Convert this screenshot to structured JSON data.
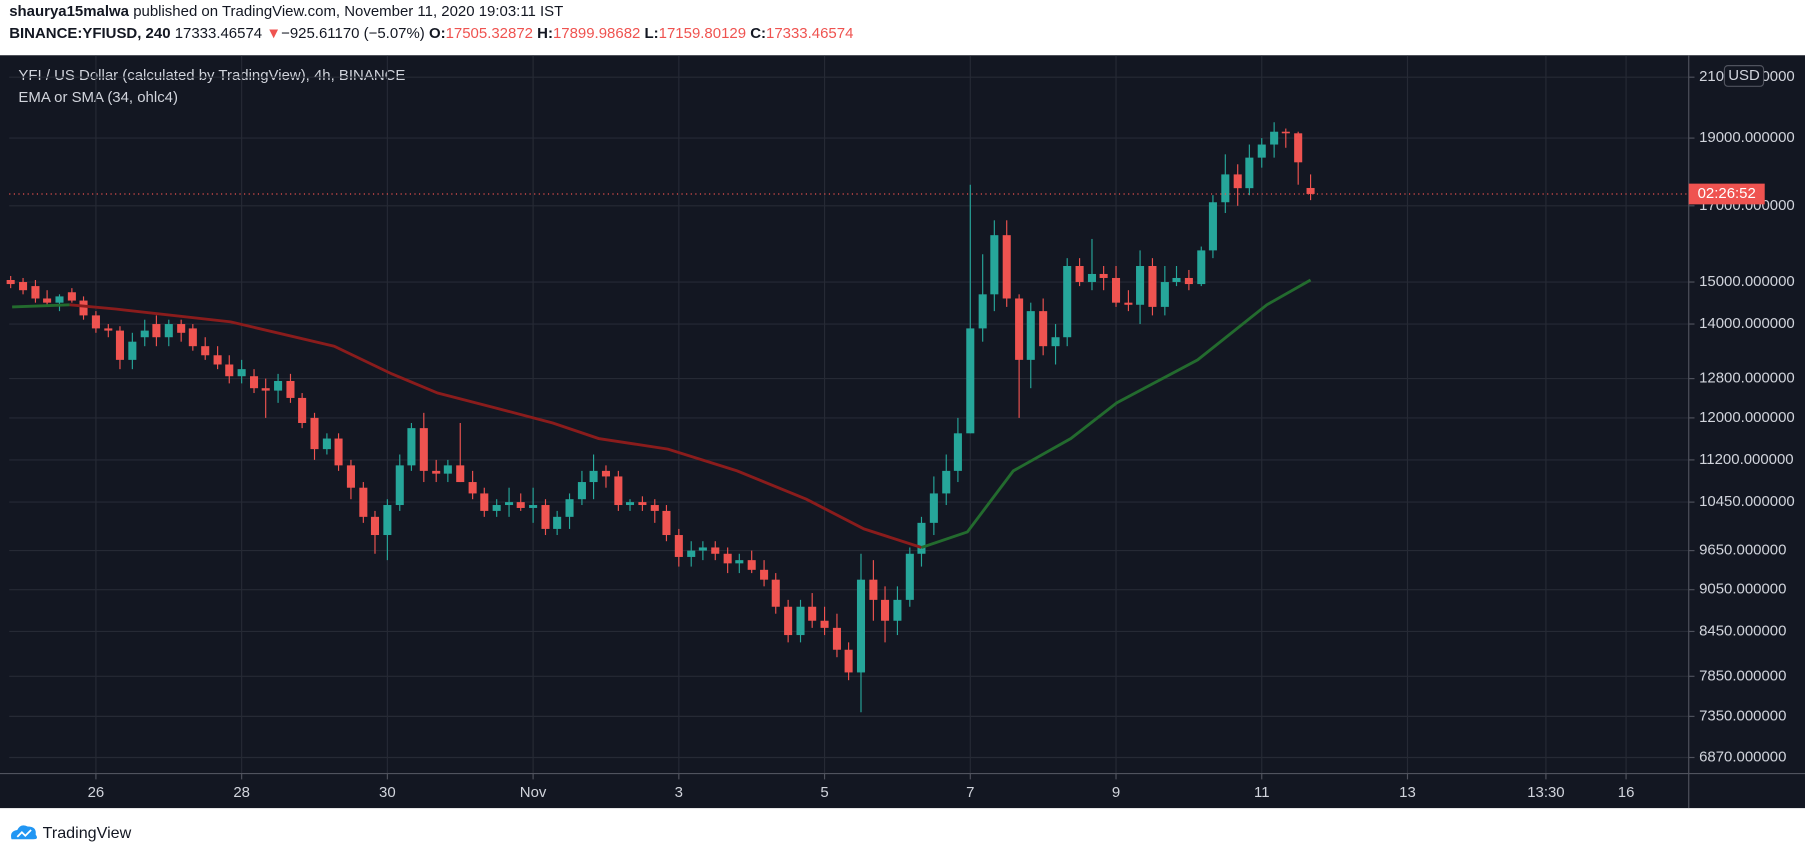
{
  "header": {
    "author": "shaurya15malwa",
    "published": "published on TradingView.com, November 11, 2020 19:03:11 IST",
    "symbol": "BINANCE:YFIUSD, 240",
    "last": "17333.46574",
    "arrow": "▼",
    "change": "−925.61170 (−5.07%)",
    "ohlc": [
      {
        "k": "O:",
        "v": "17505.32872"
      },
      {
        "k": "H:",
        "v": "17899.98682"
      },
      {
        "k": "L:",
        "v": "17159.80129"
      },
      {
        "k": "C:",
        "v": "17333.46574"
      }
    ]
  },
  "footer": {
    "brand": "TradingView"
  },
  "chart_data": {
    "type": "candlestick",
    "title": "YFI / US Dollar (calculated by TradingView), 4h, BINANCE",
    "indicator": "EMA or SMA (34, ohlc4)",
    "currency": "USD",
    "countdown": "02:26:52",
    "log_scale": true,
    "grid": true,
    "up_color": "#26a69a",
    "down_color": "#ef5350",
    "ylim": [
      6691,
      21769
    ],
    "yticks": [
      {
        "value": 21000,
        "label": "21000.000000"
      },
      {
        "value": 19000,
        "label": "19000.000000"
      },
      {
        "value": 17000,
        "label": "17000.000000"
      },
      {
        "value": 15000,
        "label": "15000.000000"
      },
      {
        "value": 14000,
        "label": "14000.000000"
      },
      {
        "value": 12800,
        "label": "12800.000000"
      },
      {
        "value": 12000,
        "label": "12000.000000"
      },
      {
        "value": 11200,
        "label": "11200.000000"
      },
      {
        "value": 10450,
        "label": "10450.000000"
      },
      {
        "value": 9650,
        "label": "9650.000000"
      },
      {
        "value": 9050,
        "label": "9050.000000"
      },
      {
        "value": 8450,
        "label": "8450.000000"
      },
      {
        "value": 7850,
        "label": "7850.000000"
      },
      {
        "value": 7350,
        "label": "7350.000000"
      },
      {
        "value": 6870,
        "label": "6870.000000"
      }
    ],
    "xlim": [
      -1.19,
      21.86
    ],
    "xticks": [
      {
        "value": 0,
        "label": "26"
      },
      {
        "value": 2,
        "label": "28"
      },
      {
        "value": 4,
        "label": "30"
      },
      {
        "value": 6,
        "label": "Nov"
      },
      {
        "value": 8,
        "label": "3"
      },
      {
        "value": 10,
        "label": "5"
      },
      {
        "value": 12,
        "label": "7"
      },
      {
        "value": 14,
        "label": "9"
      },
      {
        "value": 16,
        "label": "11"
      },
      {
        "value": 18,
        "label": "13"
      },
      {
        "value": 19.9,
        "label": "13:30"
      },
      {
        "value": 21,
        "label": "16"
      }
    ],
    "x": [
      -1.17,
      -1,
      -0.83,
      -0.67,
      -0.5,
      -0.33,
      -0.17,
      0,
      0.17,
      0.33,
      0.5,
      0.67,
      0.83,
      1,
      1.17,
      1.33,
      1.5,
      1.67,
      1.83,
      2,
      2.17,
      2.33,
      2.5,
      2.67,
      2.83,
      3,
      3.17,
      3.33,
      3.5,
      3.67,
      3.83,
      4,
      4.17,
      4.33,
      4.5,
      4.67,
      4.83,
      5,
      5.17,
      5.33,
      5.5,
      5.67,
      5.83,
      6,
      6.17,
      6.33,
      6.5,
      6.67,
      6.83,
      7,
      7.17,
      7.33,
      7.5,
      7.67,
      7.83,
      8,
      8.17,
      8.33,
      8.5,
      8.67,
      8.83,
      9,
      9.17,
      9.33,
      9.5,
      9.67,
      9.83,
      10,
      10.17,
      10.33,
      10.5,
      10.67,
      10.83,
      11,
      11.17,
      11.33,
      11.5,
      11.67,
      11.83,
      12,
      12.17,
      12.33,
      12.5,
      12.67,
      12.83,
      13,
      13.17,
      13.33,
      13.5,
      13.67,
      13.83,
      14,
      14.17,
      14.33,
      14.5,
      14.67,
      14.83,
      15,
      15.17,
      15.33,
      15.5,
      15.67,
      15.83,
      16,
      16.17,
      16.33,
      16.5,
      16.67
    ],
    "open": [
      15050,
      15000,
      14900,
      14600,
      14500,
      14750,
      14550,
      14200,
      13900,
      13850,
      13200,
      13700,
      14000,
      13700,
      14000,
      13900,
      13500,
      13300,
      13100,
      12850,
      12850,
      12600,
      12550,
      12750,
      12400,
      12000,
      11400,
      11600,
      11100,
      10700,
      10200,
      9900,
      10400,
      11100,
      11800,
      11000,
      10950,
      11100,
      10800,
      10600,
      10300,
      10400,
      10450,
      10350,
      10400,
      10000,
      10200,
      10500,
      10800,
      11000,
      10900,
      10400,
      10450,
      10400,
      10300,
      9900,
      9550,
      9650,
      9700,
      9600,
      9450,
      9500,
      9350,
      9200,
      8800,
      8400,
      8800,
      8600,
      8500,
      8200,
      7900,
      9200,
      8900,
      8600,
      8900,
      9600,
      10100,
      10600,
      11000,
      11700,
      13900,
      14700,
      16200,
      14600,
      13200,
      14300,
      13500,
      13700,
      15400,
      15000,
      15200,
      15100,
      14500,
      14450,
      15400,
      14400,
      15000,
      15100,
      14950,
      15800,
      17100,
      17900,
      17500,
      18400,
      18800,
      19200,
      19150,
      17505.32872
    ],
    "high": [
      15150,
      15100,
      15050,
      14800,
      14700,
      14850,
      14650,
      14300,
      14000,
      13950,
      13800,
      14100,
      14200,
      14100,
      14100,
      14000,
      13700,
      13500,
      13300,
      13200,
      13000,
      12800,
      12900,
      12900,
      12500,
      12100,
      11700,
      11700,
      11200,
      10800,
      10300,
      10500,
      11300,
      11900,
      12100,
      11200,
      11200,
      11900,
      11000,
      10700,
      10500,
      10700,
      10600,
      10700,
      10500,
      10300,
      10600,
      11000,
      11300,
      11100,
      11000,
      10500,
      10550,
      10500,
      10400,
      10000,
      9800,
      9800,
      9800,
      9700,
      9600,
      9650,
      9500,
      9300,
      8900,
      8900,
      9000,
      8800,
      8700,
      8300,
      9600,
      9500,
      9100,
      9100,
      9700,
      10200,
      10900,
      11300,
      12000,
      17600,
      15700,
      16600,
      16600,
      14700,
      14500,
      14600,
      14000,
      15600,
      15600,
      16100,
      15400,
      15400,
      14800,
      15800,
      15600,
      15400,
      15400,
      15300,
      15900,
      17300,
      18500,
      18200,
      18800,
      19000,
      19500,
      19300,
      19200,
      17899.98682
    ],
    "low": [
      14850,
      14700,
      14500,
      14400,
      14300,
      14500,
      14100,
      13800,
      13700,
      13000,
      13000,
      13500,
      13500,
      13500,
      13600,
      13400,
      13200,
      13000,
      12700,
      12700,
      12500,
      12000,
      12300,
      12300,
      11800,
      11200,
      11300,
      11000,
      10500,
      10100,
      9600,
      9500,
      10300,
      11000,
      10800,
      10800,
      10800,
      10800,
      10500,
      10200,
      10200,
      10200,
      10300,
      10100,
      9900,
      9900,
      10000,
      10400,
      10500,
      10700,
      10300,
      10300,
      10300,
      10100,
      9800,
      9400,
      9400,
      9500,
      9500,
      9300,
      9300,
      9300,
      9100,
      8700,
      8300,
      8300,
      8500,
      8400,
      8100,
      7800,
      7400,
      8600,
      8300,
      8400,
      8800,
      9400,
      9900,
      10400,
      10800,
      11700,
      13600,
      14300,
      14400,
      12000,
      12600,
      13300,
      13100,
      13500,
      14900,
      14800,
      14800,
      14400,
      14300,
      14000,
      14200,
      14200,
      14900,
      14800,
      14900,
      15600,
      16800,
      17000,
      17300,
      18100,
      18400,
      18700,
      17600,
      17159.80129
    ],
    "close": [
      14950,
      14800,
      14600,
      14500,
      14650,
      14550,
      14200,
      13900,
      13850,
      13200,
      13600,
      13850,
      13700,
      14000,
      13800,
      13500,
      13300,
      13100,
      12850,
      13000,
      12600,
      12550,
      12750,
      12400,
      11900,
      11400,
      11600,
      11100,
      10700,
      10200,
      9900,
      10400,
      11100,
      11800,
      11000,
      10950,
      11100,
      10800,
      10600,
      10300,
      10400,
      10450,
      10350,
      10400,
      10000,
      10200,
      10500,
      10800,
      11000,
      10900,
      10400,
      10450,
      10400,
      10300,
      9900,
      9550,
      9650,
      9700,
      9600,
      9450,
      9500,
      9350,
      9200,
      8800,
      8400,
      8800,
      8600,
      8500,
      8200,
      7900,
      9200,
      8900,
      8600,
      8900,
      9600,
      10100,
      10600,
      11000,
      11700,
      13900,
      14700,
      16200,
      14600,
      13200,
      14300,
      13500,
      13700,
      15400,
      15000,
      15200,
      15100,
      14500,
      14450,
      15400,
      14400,
      15000,
      15100,
      14950,
      15800,
      17100,
      17900,
      17500,
      18400,
      18800,
      19200,
      19150,
      18259.07744,
      17333.46574
    ],
    "ema": {
      "up_color": "#236b2e",
      "down_color": "#8a1c1c",
      "x": [
        -1.15,
        -0.36,
        0.27,
        1.85,
        3.27,
        4.06,
        4.69,
        5.48,
        6.27,
        6.9,
        7.85,
        8.8,
        9.75,
        10.54,
        11.33,
        11.96,
        12.59,
        13.38,
        14.01,
        15.12,
        16.07,
        16.67
      ],
      "values": [
        14400,
        14450,
        14350,
        14050,
        13500,
        12900,
        12500,
        12200,
        11900,
        11600,
        11400,
        11000,
        10500,
        10000,
        9700,
        9950,
        11000,
        11600,
        12300,
        13200,
        14450,
        15050
      ]
    }
  }
}
